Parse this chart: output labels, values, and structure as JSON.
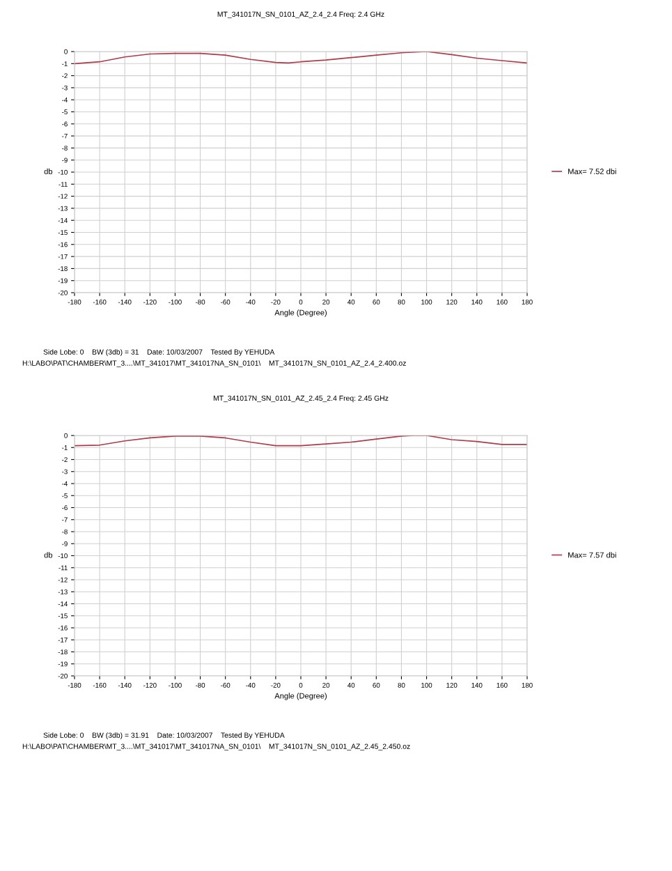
{
  "chart_data": [
    {
      "type": "line",
      "title": "MT_341017N_SN_0101_AZ_2.4_2.4 Freq: 2.4 GHz",
      "xlabel": "Angle (Degree)",
      "ylabel": "db",
      "x": [
        -180,
        -160,
        -140,
        -120,
        -100,
        -80,
        -60,
        -40,
        -20,
        -10,
        0,
        20,
        40,
        60,
        80,
        100,
        120,
        140,
        160,
        180
      ],
      "series": [
        {
          "name": "Max= 7.52 dbi",
          "color": "#b03a48",
          "values": [
            -1.0,
            -0.85,
            -0.45,
            -0.2,
            -0.15,
            -0.15,
            -0.3,
            -0.65,
            -0.9,
            -0.95,
            -0.85,
            -0.7,
            -0.5,
            -0.3,
            -0.1,
            0,
            -0.25,
            -0.55,
            -0.75,
            -0.95
          ]
        }
      ],
      "xlim": [
        -180,
        180
      ],
      "xticks": [
        -180,
        -160,
        -140,
        -120,
        -100,
        -80,
        -60,
        -40,
        -20,
        0,
        20,
        40,
        60,
        80,
        100,
        120,
        140,
        160,
        180
      ],
      "ylim": [
        -20,
        0
      ],
      "yticks": [
        -20,
        -19,
        -18,
        -17,
        -16,
        -15,
        -14,
        -13,
        -12,
        -11,
        -10,
        -9,
        -8,
        -7,
        -6,
        -5,
        -4,
        -3,
        -2,
        -1,
        0
      ],
      "grid": true,
      "legend": "right",
      "marker": "none",
      "line_style": "solid",
      "annotations": [
        "Side Lobe: 0    BW (3db) = 31    Date: 10/03/2007    Tested By YEHUDA",
        "H:\\LABO\\PAT\\CHAMBER\\MT_3....\\MT_341017\\MT_341017NA_SN_0101\\    MT_341017N_SN_0101_AZ_2.4_2.400.oz"
      ]
    },
    {
      "type": "line",
      "title": "MT_341017N_SN_0101_AZ_2.45_2.4 Freq: 2.45 GHz",
      "xlabel": "Angle (Degree)",
      "ylabel": "db",
      "x": [
        -180,
        -160,
        -140,
        -120,
        -100,
        -80,
        -60,
        -40,
        -20,
        0,
        20,
        40,
        60,
        80,
        90,
        100,
        120,
        140,
        160,
        180
      ],
      "series": [
        {
          "name": "Max= 7.57 dbi",
          "color": "#b03a48",
          "values": [
            -0.85,
            -0.8,
            -0.45,
            -0.2,
            -0.05,
            -0.05,
            -0.2,
            -0.55,
            -0.85,
            -0.85,
            -0.7,
            -0.55,
            -0.3,
            -0.05,
            0,
            0,
            -0.35,
            -0.5,
            -0.75,
            -0.75
          ]
        }
      ],
      "xlim": [
        -180,
        180
      ],
      "xticks": [
        -180,
        -160,
        -140,
        -120,
        -100,
        -80,
        -60,
        -40,
        -20,
        0,
        20,
        40,
        60,
        80,
        100,
        120,
        140,
        160,
        180
      ],
      "ylim": [
        -20,
        0
      ],
      "yticks": [
        -20,
        -19,
        -18,
        -17,
        -16,
        -15,
        -14,
        -13,
        -12,
        -11,
        -10,
        -9,
        -8,
        -7,
        -6,
        -5,
        -4,
        -3,
        -2,
        -1,
        0
      ],
      "grid": true,
      "legend": "right",
      "marker": "none",
      "line_style": "solid",
      "annotations": [
        "Side Lobe: 0    BW (3db) = 31.91    Date: 10/03/2007    Tested By YEHUDA",
        "H:\\LABO\\PAT\\CHAMBER\\MT_3....\\MT_341017\\MT_341017NA_SN_0101\\    MT_341017N_SN_0101_AZ_2.45_2.450.oz"
      ]
    }
  ]
}
